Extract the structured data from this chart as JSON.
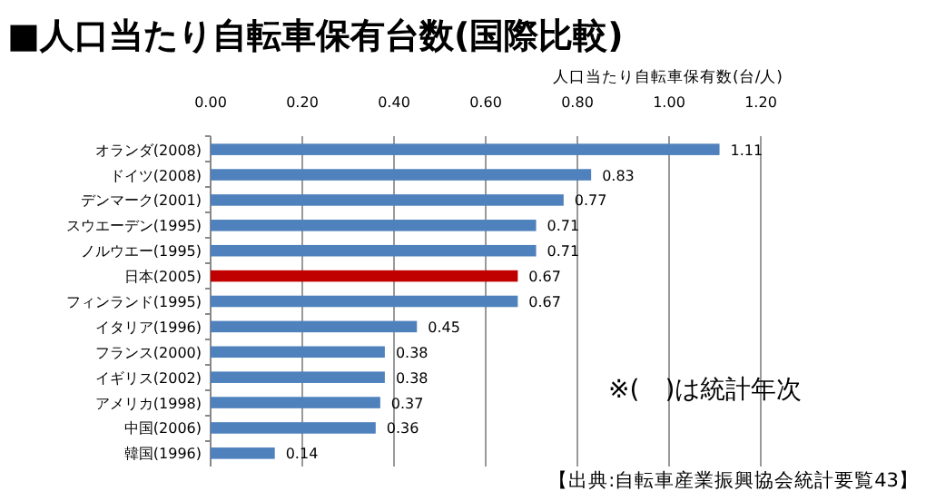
{
  "chart_data": {
    "type": "bar",
    "orientation": "horizontal",
    "title": "■人口当たり自転車保有台数(国際比較)",
    "xlabel": "人口当たり自転車保有数(台/人)",
    "categories": [
      "オランダ(2008)",
      "ドイツ(2008)",
      "デンマーク(2001)",
      "スウエーデン(1995)",
      "ノルウエー(1995)",
      "日本(2005)",
      "フィンランド(1995)",
      "イタリア(1996)",
      "フランス(2000)",
      "イギリス(2002)",
      "アメリカ(1998)",
      "中国(2006)",
      "韓国(1996)"
    ],
    "values": [
      1.11,
      0.83,
      0.77,
      0.71,
      0.71,
      0.67,
      0.67,
      0.45,
      0.38,
      0.38,
      0.37,
      0.36,
      0.14
    ],
    "colors": [
      "#4f81bd",
      "#4f81bd",
      "#4f81bd",
      "#4f81bd",
      "#4f81bd",
      "#c00000",
      "#4f81bd",
      "#4f81bd",
      "#4f81bd",
      "#4f81bd",
      "#4f81bd",
      "#4f81bd",
      "#4f81bd"
    ],
    "xlim": [
      0,
      1.2
    ],
    "xticks": [
      {
        "value": 0,
        "label": "0.00"
      },
      {
        "value": 0.2,
        "label": "0.20"
      },
      {
        "value": 0.4,
        "label": "0.40"
      },
      {
        "value": 0.6,
        "label": "0.60"
      },
      {
        "value": 0.8,
        "label": "0.80"
      },
      {
        "value": 1,
        "label": "1.00"
      },
      {
        "value": 1.2,
        "label": "1.20"
      }
    ],
    "grid": "x",
    "data_labels": true,
    "annotations": [
      "※(　)は統計年次",
      "【出典:自転車産業振興協会統計要覧43】"
    ]
  }
}
